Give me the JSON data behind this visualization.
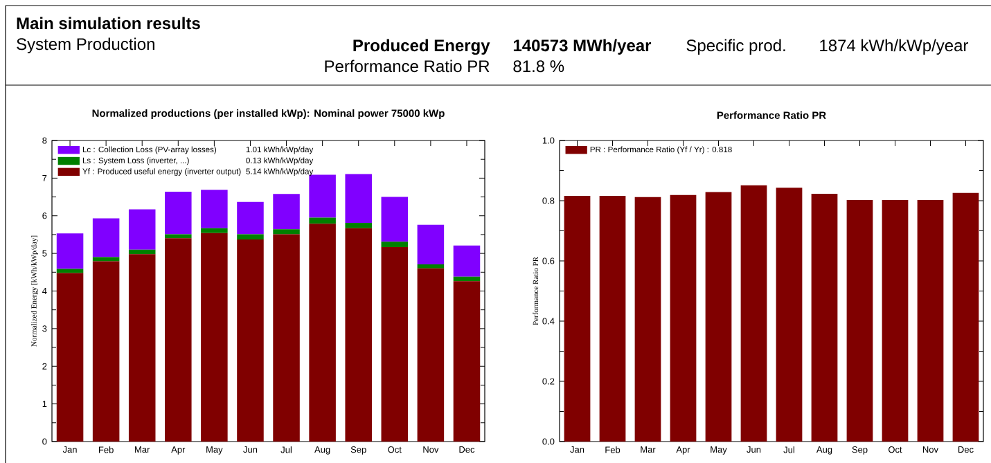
{
  "chart_data": [
    {
      "type": "other",
      "title": "Main simulation results",
      "subtitle": "System Production",
      "annotations": [
        "Produced Energy",
        "140573 MWh/year",
        "Specific prod.",
        "1874 kWh/kWp/year",
        "Performance Ratio PR",
        "81.8 %"
      ]
    },
    {
      "type": "bar",
      "stacked": true,
      "title": "Normalized productions (per installed kWp):  Nominal power 75000 kWp",
      "ylabel": "Normalized Energy [kWh/kWp/day]",
      "categories": [
        "Jan",
        "Feb",
        "Mar",
        "Apr",
        "May",
        "Jun",
        "Jul",
        "Aug",
        "Sep",
        "Oct",
        "Nov",
        "Dec"
      ],
      "series": [
        {
          "name": "Yf : Produced useful energy  (inverter output)",
          "color": "#800000",
          "values": [
            4.48,
            4.79,
            4.98,
            5.4,
            5.54,
            5.37,
            5.51,
            5.79,
            5.67,
            5.17,
            4.6,
            4.26
          ]
        },
        {
          "name": "Ls : System Loss  (inverter, ...)",
          "color": "#008000",
          "values": [
            0.11,
            0.11,
            0.12,
            0.11,
            0.13,
            0.14,
            0.13,
            0.16,
            0.14,
            0.14,
            0.11,
            0.12
          ]
        },
        {
          "name": "Lc : Collection Loss (PV-array losses)",
          "color": "#8000ff",
          "values": [
            0.94,
            1.03,
            1.07,
            1.13,
            1.02,
            0.86,
            0.94,
            1.14,
            1.3,
            1.19,
            1.05,
            0.83
          ]
        }
      ],
      "annotations": [
        "5.14 kWh/kWp/day",
        "0.13 kWh/kWp/day",
        "1.01 kWh/kWp/day"
      ],
      "ylim": [
        0,
        8
      ],
      "yticks": [
        0,
        1,
        2,
        3,
        4,
        5,
        6,
        7,
        8
      ],
      "legend": "top left",
      "grid": false
    },
    {
      "type": "bar",
      "title": "Performance Ratio PR",
      "ylabel": "Performance Ratio PR",
      "categories": [
        "Jan",
        "Feb",
        "Mar",
        "Apr",
        "May",
        "Jun",
        "Jul",
        "Aug",
        "Sep",
        "Oct",
        "Nov",
        "Dec"
      ],
      "series": [
        {
          "name": "PR : Performance Ratio (Yf / Yr) :  0.818",
          "color": "#800000",
          "values": [
            0.816,
            0.816,
            0.812,
            0.819,
            0.829,
            0.851,
            0.843,
            0.823,
            0.802,
            0.802,
            0.802,
            0.826
          ]
        }
      ],
      "ylim": [
        0,
        1.0
      ],
      "yticks": [
        {
          "value": 0,
          "label": "0.0"
        },
        {
          "value": 0.2,
          "label": "0.2"
        },
        {
          "value": 0.4,
          "label": "0.4"
        },
        {
          "value": 0.6,
          "label": "0.6"
        },
        {
          "value": 0.8,
          "label": "0.8"
        },
        {
          "value": 1.0,
          "label": "1.0"
        }
      ],
      "legend": "top left",
      "grid": false
    }
  ]
}
